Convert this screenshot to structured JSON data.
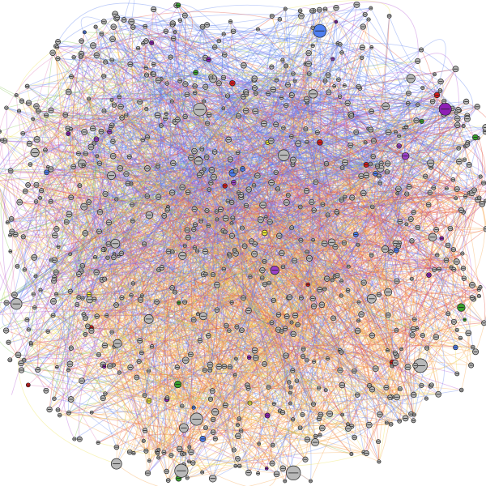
{
  "graph": {
    "background": "#ffffff",
    "node_fill_default": "#b8b8b8",
    "node_stroke": "#222222",
    "community_colors": {
      "blue": "#5a7df0",
      "orange": "#f6a447",
      "red": "#e2432e",
      "purple": "#b455d6",
      "green": "#7fc24a",
      "yellow": "#ece24a",
      "pink": "#e07ab8"
    },
    "highlight_node_colors": [
      "#8e1fb5",
      "#d81b1b",
      "#f2ee3a",
      "#4f7ff0",
      "#3aa12e",
      "#9b40c9"
    ]
  }
}
